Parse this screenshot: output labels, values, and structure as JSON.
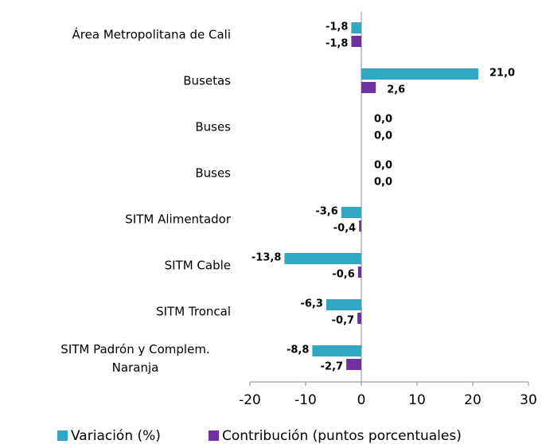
{
  "chart_data": {
    "type": "hbar",
    "categories": [
      "Área Metropolitana de Cali",
      "Busetas",
      "Buses",
      "Buses",
      "SITM Alimentador",
      "SITM Cable",
      "SITM Troncal",
      "SITM Padrón y Complem. Naranja"
    ],
    "series": [
      {
        "name": "Variación (%)",
        "color": "#31a7c4",
        "label_color": "#2b8ea8",
        "values": [
          -1.8,
          21.0,
          0.0,
          0.0,
          -3.6,
          -13.8,
          -6.3,
          -8.8
        ],
        "value_labels": [
          "-1,8",
          "21,0",
          "0,0",
          "0,0",
          "-3,6",
          "-13,8",
          "-6,3",
          "-8,8"
        ]
      },
      {
        "name": "Contribución (puntos porcentuales)",
        "color": "#7030a0",
        "label_color": "#7030a0",
        "values": [
          -1.8,
          2.6,
          0.0,
          0.0,
          -0.4,
          -0.6,
          -0.7,
          -2.7
        ],
        "value_labels": [
          "-1,8",
          "2,6",
          "0,0",
          "0,0",
          "-0,4",
          "-0,6",
          "-0,7",
          "-2,7"
        ]
      }
    ],
    "xlim": [
      -20,
      30
    ],
    "xticks": [
      -20,
      -10,
      0,
      10,
      20,
      30
    ],
    "legend": "bottom"
  }
}
